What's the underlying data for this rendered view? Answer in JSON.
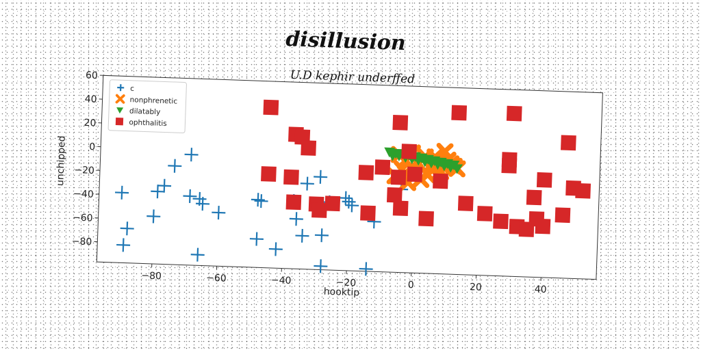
{
  "chart_data": {
    "type": "scatter",
    "title": "disillusion",
    "subtitle": "U.D kephir underffed",
    "xlabel": "hooktip",
    "ylabel": "unchipped",
    "xlim": [
      -97,
      57
    ],
    "ylim": [
      -97,
      60
    ],
    "xticks": [
      -80,
      -60,
      -40,
      -20,
      0,
      20,
      40
    ],
    "yticks": [
      60,
      40,
      20,
      0,
      -20,
      -40,
      -60,
      -80
    ],
    "grid": false,
    "legend_position": "top-left",
    "series": [
      {
        "name": "c",
        "marker": "plus",
        "color": "#1f77b4",
        "points": [
          [
            -90,
            -38
          ],
          [
            -88,
            -68
          ],
          [
            -89,
            -82
          ],
          [
            -80,
            -57
          ],
          [
            -79,
            -36
          ],
          [
            -77,
            -31
          ],
          [
            -74,
            -14
          ],
          [
            -69,
            -4
          ],
          [
            -69,
            -39
          ],
          [
            -66,
            -41
          ],
          [
            -65,
            -45
          ],
          [
            -66,
            -88
          ],
          [
            -60,
            -52
          ],
          [
            -48,
            -40
          ],
          [
            -47,
            -41
          ],
          [
            -48,
            -73
          ],
          [
            -42,
            -81
          ],
          [
            -37,
            -40
          ],
          [
            -36,
            -55
          ],
          [
            -34,
            -69
          ],
          [
            -33,
            -25
          ],
          [
            -29,
            -19
          ],
          [
            -28,
            -68
          ],
          [
            -28,
            -94
          ],
          [
            -26,
            -40
          ],
          [
            -21,
            -36
          ],
          [
            -20,
            -39
          ],
          [
            -19,
            -42
          ],
          [
            -14,
            -95
          ],
          [
            -12,
            -55
          ],
          [
            -4,
            -27
          ],
          [
            -27,
            -43
          ]
        ]
      },
      {
        "name": "nonphrenetic",
        "marker": "x",
        "color": "#ff7f0e",
        "points": [
          [
            -5,
            2
          ],
          [
            -3,
            -3
          ],
          [
            -1,
            4
          ],
          [
            1,
            -5
          ],
          [
            3,
            1
          ],
          [
            5,
            -9
          ],
          [
            7,
            -2
          ],
          [
            9,
            6
          ],
          [
            11,
            -4
          ],
          [
            13,
            -8
          ],
          [
            -4,
            -10
          ],
          [
            0,
            -12
          ],
          [
            4,
            -14
          ],
          [
            8,
            -11
          ],
          [
            2,
            -18
          ],
          [
            -2,
            -21
          ],
          [
            -6,
            -16
          ],
          [
            6,
            1
          ],
          [
            10,
            -1
          ],
          [
            12,
            -6
          ],
          [
            -1,
            -8
          ],
          [
            5,
            -6
          ]
        ]
      },
      {
        "name": "dilatably",
        "marker": "triangle-down",
        "color": "#2ca02c",
        "points": [
          [
            -8,
            4
          ],
          [
            -6,
            3
          ],
          [
            -4,
            3
          ],
          [
            -2,
            2
          ],
          [
            0,
            1
          ],
          [
            2,
            0
          ],
          [
            4,
            -1
          ],
          [
            6,
            -2
          ],
          [
            8,
            -3
          ],
          [
            10,
            -4
          ],
          [
            12,
            -5
          ],
          [
            -7,
            1
          ],
          [
            -5,
            1
          ],
          [
            -3,
            0
          ],
          [
            -1,
            -1
          ],
          [
            1,
            -2
          ],
          [
            3,
            -3
          ],
          [
            5,
            -4
          ],
          [
            7,
            -5
          ],
          [
            9,
            -6
          ],
          [
            11,
            -7
          ],
          [
            13,
            -8
          ]
        ]
      },
      {
        "name": "ophthalitis",
        "marker": "square",
        "color": "#d62728",
        "points": [
          [
            -45,
            38
          ],
          [
            -37,
            16
          ],
          [
            -35,
            14
          ],
          [
            -33,
            5
          ],
          [
            -45,
            -18
          ],
          [
            -38,
            -20
          ],
          [
            -37,
            -41
          ],
          [
            -30,
            -42
          ],
          [
            -29,
            -47
          ],
          [
            -25,
            -41
          ],
          [
            -15,
            -14
          ],
          [
            -14,
            -48
          ],
          [
            -10,
            -9
          ],
          [
            -5,
            -17
          ],
          [
            -6,
            -32
          ],
          [
            -4,
            -43
          ],
          [
            -5,
            29
          ],
          [
            -2,
            5
          ],
          [
            0,
            -14
          ],
          [
            4,
            -51
          ],
          [
            8,
            -19
          ],
          [
            13,
            39
          ],
          [
            16,
            -37
          ],
          [
            22,
            -45
          ],
          [
            27,
            -51
          ],
          [
            29,
            1
          ],
          [
            29,
            -4
          ],
          [
            30,
            40
          ],
          [
            32,
            -55
          ],
          [
            35,
            -57
          ],
          [
            37,
            -30
          ],
          [
            38,
            -48
          ],
          [
            40,
            -54
          ],
          [
            40,
            -15
          ],
          [
            46,
            -44
          ],
          [
            47,
            17
          ],
          [
            49,
            -21
          ],
          [
            52,
            -23
          ]
        ]
      }
    ]
  }
}
